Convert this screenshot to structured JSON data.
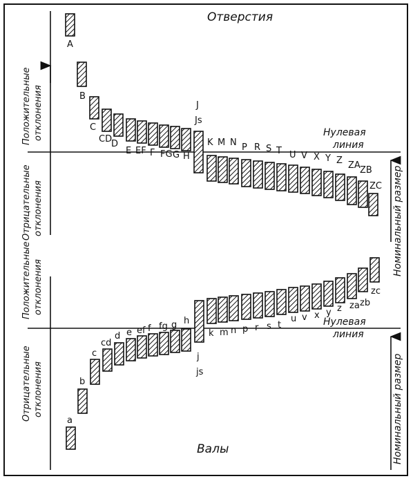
{
  "title_top": "Отверстия",
  "title_bottom": "Валы",
  "zero_line_label": [
    "Нулевая",
    "линия"
  ],
  "nominal_size_label": "Номинальный размер",
  "side_labels": {
    "top_positive": [
      "Положительные",
      "отклонения"
    ],
    "top_negative": [
      "Отрицательные",
      "отклонения"
    ],
    "bottom_positive": [
      "Положительные",
      "отклонения"
    ],
    "bottom_negative": [
      "Отрицательные",
      "отклонения"
    ]
  },
  "holes": {
    "labels_above": [
      "A",
      "B",
      "C",
      "CD",
      "D",
      "E",
      "EF",
      "F",
      "FG",
      "G",
      "H"
    ],
    "js_label": [
      "J",
      "Js"
    ],
    "labels_below": [
      "K",
      "M",
      "N",
      "P",
      "R",
      "S",
      "T",
      "U",
      "V",
      "X",
      "Y",
      "Z",
      "ZA",
      "ZB",
      "ZC"
    ]
  },
  "shafts": {
    "labels_below": [
      "a",
      "b",
      "c",
      "cd",
      "d",
      "e",
      "ef",
      "f",
      "fg",
      "g",
      "h"
    ],
    "js_label": [
      "j",
      "js"
    ],
    "labels_above": [
      "k",
      "m",
      "n",
      "p",
      "r",
      "s",
      "t",
      "u",
      "v",
      "x",
      "y",
      "z",
      "za",
      "zb",
      "zc"
    ]
  }
}
